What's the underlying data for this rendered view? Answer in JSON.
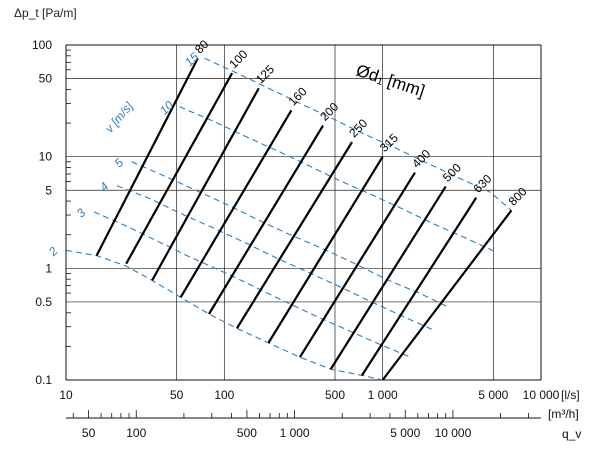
{
  "chart_data": {
    "type": "line",
    "title": "",
    "xlabel": "q_v",
    "x_unit_primary": "[l/s]",
    "x_unit_secondary": "[m³/h]",
    "ylabel": "Δp_t [Pa/m]",
    "x_scale": "log",
    "y_scale": "log",
    "xlim": [
      10,
      10000
    ],
    "ylim": [
      0.1,
      100
    ],
    "grid": true,
    "x_ticks": [
      10,
      50,
      100,
      500,
      1000,
      5000,
      10000
    ],
    "x_tick_labels": [
      "10",
      "50",
      "100",
      "500",
      "1 000",
      "5 000",
      "10 000"
    ],
    "x2_ticks_m3h": [
      50,
      100,
      500,
      1000,
      5000,
      10000
    ],
    "x2_tick_labels": [
      "50",
      "100",
      "500",
      "1 000",
      "5 000",
      "10 000"
    ],
    "y_ticks": [
      0.1,
      0.5,
      1,
      5,
      10,
      50,
      100
    ],
    "y_tick_labels": [
      "0.1",
      "0.5",
      "1",
      "5",
      "10",
      "50",
      "100"
    ],
    "diameter_title": "Ød₁ [mm]",
    "velocity_title": "v [m/s]",
    "diameter_series": [
      {
        "name": "80",
        "x": [
          15.6,
          68
        ],
        "y": [
          1.3,
          76
        ]
      },
      {
        "name": "100",
        "x": [
          24,
          112
        ],
        "y": [
          1.1,
          56
        ]
      },
      {
        "name": "125",
        "x": [
          35,
          165
        ],
        "y": [
          0.78,
          41
        ]
      },
      {
        "name": "160",
        "x": [
          53,
          265
        ],
        "y": [
          0.55,
          26
        ]
      },
      {
        "name": "200",
        "x": [
          80,
          420
        ],
        "y": [
          0.39,
          19
        ]
      },
      {
        "name": "250",
        "x": [
          120,
          640
        ],
        "y": [
          0.29,
          13.5
        ]
      },
      {
        "name": "315",
        "x": [
          190,
          1000
        ],
        "y": [
          0.215,
          10
        ]
      },
      {
        "name": "400",
        "x": [
          300,
          1600
        ],
        "y": [
          0.16,
          7.2
        ]
      },
      {
        "name": "500",
        "x": [
          470,
          2500
        ],
        "y": [
          0.125,
          5.4
        ]
      },
      {
        "name": "630",
        "x": [
          740,
          3900
        ],
        "y": [
          0.11,
          4.3
        ]
      },
      {
        "name": "800",
        "x": [
          1000,
          6500
        ],
        "y": [
          0.1,
          3.3
        ]
      }
    ],
    "velocity_series": [
      {
        "name": "2",
        "x": [
          10,
          15.6,
          24,
          35,
          53,
          80,
          120,
          190,
          300,
          470,
          740,
          1000
        ],
        "y": [
          1.45,
          1.3,
          1.05,
          0.78,
          0.55,
          0.39,
          0.29,
          0.215,
          0.16,
          0.125,
          0.11,
          0.1
        ]
      },
      {
        "name": "3",
        "x": [
          15,
          24,
          38,
          58,
          95,
          150,
          230,
          370,
          600,
          950,
          1500
        ],
        "y": [
          3.2,
          2.4,
          1.75,
          1.3,
          0.95,
          0.7,
          0.52,
          0.38,
          0.28,
          0.21,
          0.16
        ]
      },
      {
        "name": "4",
        "x": [
          21,
          34,
          53,
          85,
          135,
          210,
          340,
          540,
          850,
          1350,
          2100
        ],
        "y": [
          5.5,
          4.2,
          3.1,
          2.3,
          1.7,
          1.25,
          0.92,
          0.68,
          0.5,
          0.37,
          0.28
        ]
      },
      {
        "name": "5",
        "x": [
          26,
          42,
          66,
          105,
          165,
          260,
          420,
          670,
          1050,
          1700,
          2600
        ],
        "y": [
          9,
          6.7,
          5,
          3.7,
          2.7,
          2,
          1.5,
          1.1,
          0.8,
          0.6,
          0.45
        ]
      },
      {
        "name": "10",
        "x": [
          52,
          84,
          132,
          210,
          330,
          520,
          840,
          1340,
          2100,
          3400,
          5200
        ],
        "y": [
          28,
          21,
          15.5,
          11.5,
          8.5,
          6.2,
          4.6,
          3.4,
          2.5,
          1.85,
          1.4
        ]
      },
      {
        "name": "15",
        "x": [
          75,
          120,
          190,
          300,
          480,
          760,
          1200,
          1900,
          3000,
          4800,
          6500
        ],
        "y": [
          76,
          56,
          41,
          30,
          22,
          16,
          12,
          8.8,
          6.5,
          4.8,
          3.3
        ]
      }
    ]
  }
}
